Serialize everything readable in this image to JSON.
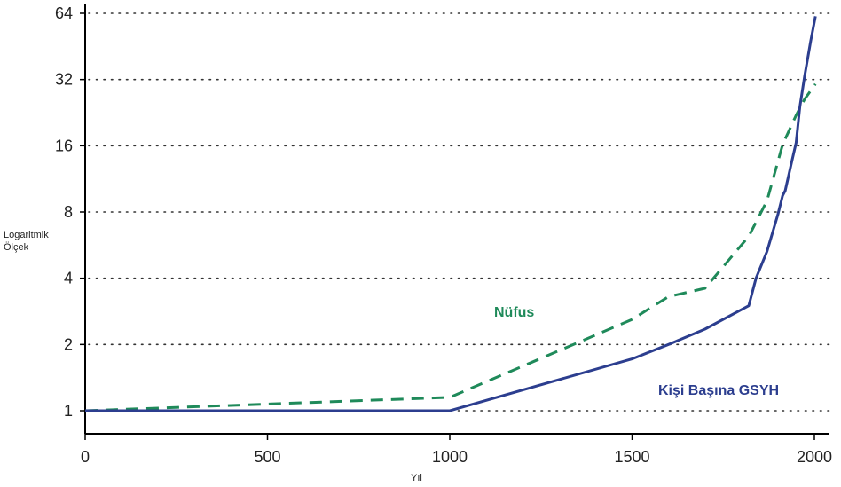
{
  "chart_data": {
    "type": "line",
    "xlabel": "Yıl",
    "ylabel_line1": "Logaritmik",
    "ylabel_line2": "Ölçek",
    "yscale": "log2",
    "xlim": [
      0,
      2020
    ],
    "ylim": [
      0.85,
      72
    ],
    "x_ticks": [
      0,
      500,
      1000,
      1500,
      2000
    ],
    "y_ticks": [
      1,
      2,
      4,
      8,
      16,
      32,
      64
    ],
    "grid": "horizontal dotted",
    "series": [
      {
        "name": "Nüfus",
        "color": "#1f8a5a",
        "style": "dashed",
        "x": [
          0,
          1000,
          1500,
          1600,
          1700,
          1820,
          1870,
          1913,
          1950,
          1973,
          2003
        ],
        "y": [
          1.0,
          1.15,
          2.6,
          3.3,
          3.6,
          6.2,
          9.0,
          16.2,
          22.0,
          26.0,
          30.5
        ]
      },
      {
        "name": "Kişi Başına GSYH",
        "color": "#2c3e8f",
        "style": "solid",
        "x": [
          0,
          1000,
          1500,
          1600,
          1700,
          1820,
          1840,
          1870,
          1900,
          1913,
          1920,
          1940,
          1950,
          1960,
          1973,
          1990,
          2003
        ],
        "y": [
          1.0,
          1.0,
          1.72,
          2.0,
          2.35,
          3.0,
          4.0,
          5.3,
          7.8,
          9.5,
          10.0,
          14.0,
          16.5,
          24.0,
          33.0,
          48.0,
          62.0
        ]
      }
    ]
  }
}
